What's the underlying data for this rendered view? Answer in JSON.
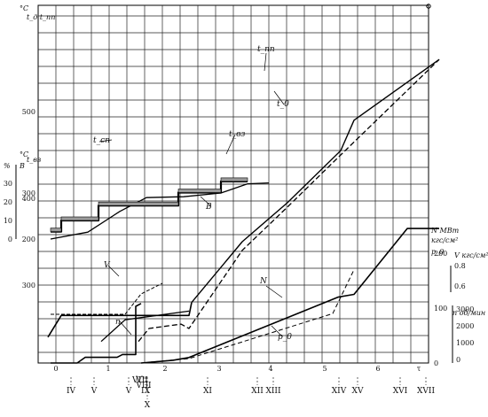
{
  "chart_data": {
    "type": "line",
    "x_ticks": [
      "0",
      "1",
      "2",
      "3",
      "4",
      "5",
      "6",
      "τ"
    ],
    "stage_marks": [
      "IV",
      "V",
      "V",
      "VI",
      "VII",
      "VIII",
      "IX",
      "X",
      "XI",
      "XII",
      "XIII",
      "XIV",
      "XV",
      "XVI",
      "XVII"
    ],
    "axes": {
      "temperature_gas": {
        "unit": "°C",
        "label": "t_д t_пп",
        "ticks": [
          "300",
          "400",
          "500"
        ]
      },
      "temperature_steam": {
        "unit": "°C",
        "label": "t_вз",
        "ticks": [
          "200",
          "300"
        ]
      },
      "percent_B": {
        "unit": "%",
        "label": "B",
        "ticks": [
          "0",
          "10",
          "20",
          "30"
        ]
      },
      "power": {
        "unit": "МВт",
        "label": "N",
        "ticks": [
          "0",
          "100",
          "200"
        ]
      },
      "pressure": {
        "unit": "кгс/см²",
        "label": "p_0",
        "ticks": [
          "0.6",
          "0.8"
        ]
      },
      "vacuum": {
        "unit": "кгс/см²",
        "label": "V",
        "ticks": []
      },
      "speed": {
        "unit": "об/мин",
        "label": "n",
        "ticks": [
          "0",
          "1000",
          "2000",
          "3000"
        ]
      }
    },
    "series": [
      {
        "name": "t_пп",
        "axis": "temperature_gas",
        "x": [
          2.55,
          3.5,
          4.35,
          5.35,
          5.6,
          7.2
        ],
        "y": [
          280,
          350,
          395,
          455,
          490,
          560
        ]
      },
      {
        "name": "t_0",
        "axis": "temperature_gas",
        "x": [
          1.55,
          1.75,
          2.35,
          2.5,
          3.5,
          4.35,
          5.35,
          7.2
        ],
        "y": [
          235,
          250,
          255,
          250,
          340,
          390,
          450,
          560
        ]
      },
      {
        "name": "t_сп",
        "axis": "temperature_gas",
        "x": [
          -0.15,
          0.1,
          1.0,
          2.5,
          2.55
        ],
        "y": [
          240,
          265,
          265,
          265,
          280
        ]
      },
      {
        "name": "t_ц",
        "axis": "temperature_gas",
        "x": [
          0.85,
          1.3,
          2.5
        ],
        "y": [
          235,
          260,
          270
        ]
      },
      {
        "name": "t_вз",
        "axis": "temperature_steam",
        "x": [
          -0.1,
          0.6,
          1.2,
          1.7,
          2.4,
          3.1,
          3.6,
          4.0
        ],
        "y": [
          200,
          215,
          260,
          290,
          292,
          300,
          320,
          322
        ]
      },
      {
        "name": "B",
        "axis": "percent_B",
        "x": [
          -0.1,
          0.1,
          0.1,
          0.8,
          0.8,
          2.3,
          2.3,
          3.1,
          3.1,
          3.6
        ],
        "y": [
          4,
          4,
          10,
          10,
          18,
          18,
          25,
          25,
          31,
          31
        ]
      },
      {
        "name": "V",
        "axis": "vacuum",
        "x": [
          -0.1,
          1.3,
          1.6,
          2.0
        ],
        "y": [
          0.55,
          0.55,
          0.78,
          0.9
        ]
      },
      {
        "name": "n",
        "axis": "speed",
        "x": [
          -0.1,
          0.4,
          0.55,
          1.15,
          1.25,
          1.5,
          1.5,
          1.6
        ],
        "y": [
          0,
          0,
          200,
          200,
          300,
          300,
          2000,
          2100
        ]
      },
      {
        "name": "N",
        "axis": "power",
        "x": [
          1.6,
          2.2,
          2.5,
          5.3,
          5.6,
          6.6,
          7.2
        ],
        "y": [
          0,
          5,
          10,
          120,
          125,
          245,
          245
        ]
      },
      {
        "name": "p_0",
        "axis": "power",
        "x": [
          1.6,
          2.5,
          5.2,
          5.6
        ],
        "y": [
          0,
          8,
          90,
          170
        ]
      }
    ]
  },
  "labels": {
    "t_pp": "t_пп",
    "t_0": "t_0",
    "t_vz": "t_вз",
    "t_sp": "t_сп",
    "B": "B",
    "V": "V",
    "n": "n",
    "N": "N",
    "p0": "p_0"
  }
}
